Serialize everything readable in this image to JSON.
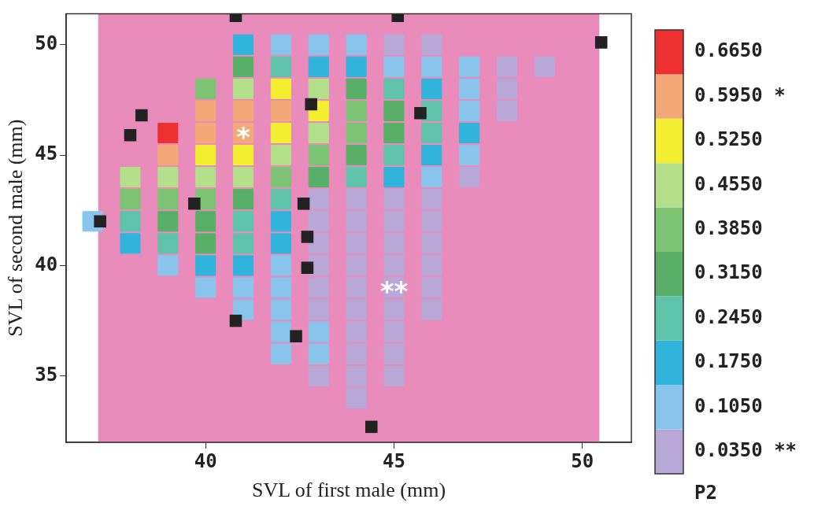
{
  "chart_data": {
    "type": "scatter",
    "xlabel": "SVL of first male (mm)",
    "ylabel": "SVL of second male (mm)",
    "clabel": "P2",
    "xlim": [
      36.3,
      51.3
    ],
    "ylim": [
      32,
      51.4
    ],
    "xticks": [
      40,
      45,
      50
    ],
    "yticks": [
      35,
      40,
      45,
      50
    ],
    "clim": [
      0,
      0.7
    ],
    "cticks": [
      {
        "value": 0.035,
        "label": "0.0350 **"
      },
      {
        "value": 0.105,
        "label": "0.1050"
      },
      {
        "value": 0.175,
        "label": "0.1750"
      },
      {
        "value": 0.245,
        "label": "0.2450"
      },
      {
        "value": 0.315,
        "label": "0.3150"
      },
      {
        "value": 0.385,
        "label": "0.3850"
      },
      {
        "value": 0.455,
        "label": "0.4550"
      },
      {
        "value": 0.525,
        "label": "0.5250"
      },
      {
        "value": 0.595,
        "label": "0.5950 *"
      },
      {
        "value": 0.665,
        "label": "0.6650"
      }
    ],
    "colors": [
      "#b8a8d8",
      "#88c4ec",
      "#30b4dc",
      "#60c4ac",
      "#58b068",
      "#7cc474",
      "#b4e08c",
      "#f4ee30",
      "#f4a878",
      "#ee3030"
    ],
    "series": [
      {
        "type": "scatter",
        "marker": "square",
        "x": [
          41,
          42,
          43,
          44,
          45,
          46
        ],
        "values": [
          50,
          50,
          50,
          50,
          50,
          50
        ],
        "cvalues": [
          0.175,
          0.105,
          0.105,
          0.105,
          0.035,
          0.035
        ],
        "colors": [
          "#30b4dc",
          "#88c4ec",
          "#88c4ec",
          "#88c4ec",
          "#b8a8d8",
          "#b8a8d8"
        ]
      },
      {
        "type": "scatter",
        "marker": "square",
        "x": [
          41,
          42,
          43,
          44,
          45,
          46,
          47,
          48,
          49
        ],
        "values": [
          49,
          49,
          49,
          49,
          49,
          49,
          49,
          49,
          49
        ],
        "cvalues": [
          0.315,
          0.245,
          0.175,
          0.175,
          0.105,
          0.105,
          0.105,
          0.035,
          0.035
        ],
        "colors": [
          "#58b068",
          "#60c4ac",
          "#30b4dc",
          "#30b4dc",
          "#88c4ec",
          "#88c4ec",
          "#88c4ec",
          "#b8a8d8",
          "#b8a8d8"
        ]
      },
      {
        "type": "scatter",
        "marker": "square",
        "x": [
          40,
          41,
          42,
          43,
          44,
          45,
          46,
          47,
          48
        ],
        "values": [
          48,
          48,
          48,
          48,
          48,
          48,
          48,
          48,
          48
        ],
        "cvalues": [
          0.385,
          0.455,
          0.525,
          0.455,
          0.315,
          0.245,
          0.175,
          0.105,
          0.035
        ],
        "colors": [
          "#7cc474",
          "#b4e08c",
          "#f4ee30",
          "#b4e08c",
          "#58b068",
          "#60c4ac",
          "#30b4dc",
          "#88c4ec",
          "#b8a8d8"
        ]
      },
      {
        "type": "scatter",
        "marker": "square",
        "x": [
          40,
          41,
          42,
          43,
          44,
          45,
          46,
          47,
          48
        ],
        "values": [
          47,
          47,
          47,
          47,
          47,
          47,
          47,
          47,
          47
        ],
        "cvalues": [
          0.595,
          0.595,
          0.595,
          0.525,
          0.385,
          0.315,
          0.245,
          0.105,
          0.035
        ],
        "colors": [
          "#f4a878",
          "#f4a878",
          "#f4a878",
          "#f4ee30",
          "#7cc474",
          "#58b068",
          "#60c4ac",
          "#88c4ec",
          "#b8a8d8"
        ]
      },
      {
        "type": "scatter",
        "marker": "square",
        "x": [
          39,
          40,
          41,
          42,
          43,
          44,
          45,
          46,
          47
        ],
        "values": [
          46,
          46,
          46,
          46,
          46,
          46,
          46,
          46,
          46
        ],
        "cvalues": [
          0.665,
          0.595,
          0.595,
          0.525,
          0.455,
          0.385,
          0.315,
          0.245,
          0.175
        ],
        "colors": [
          "#ee3030",
          "#f4a878",
          "#f4a878",
          "#f4ee30",
          "#b4e08c",
          "#7cc474",
          "#58b068",
          "#60c4ac",
          "#30b4dc"
        ]
      },
      {
        "type": "scatter",
        "marker": "square",
        "x": [
          39,
          40,
          41,
          42,
          43,
          44,
          45,
          46,
          47
        ],
        "values": [
          45,
          45,
          45,
          45,
          45,
          45,
          45,
          45,
          45
        ],
        "cvalues": [
          0.595,
          0.525,
          0.525,
          0.455,
          0.385,
          0.315,
          0.245,
          0.175,
          0.105
        ],
        "colors": [
          "#f4a878",
          "#f4ee30",
          "#f4ee30",
          "#b4e08c",
          "#7cc474",
          "#58b068",
          "#60c4ac",
          "#30b4dc",
          "#88c4ec"
        ]
      },
      {
        "type": "scatter",
        "marker": "square",
        "x": [
          38,
          39,
          40,
          41,
          42,
          43,
          44,
          45,
          46,
          47
        ],
        "values": [
          44,
          44,
          44,
          44,
          44,
          44,
          44,
          44,
          44,
          44
        ],
        "cvalues": [
          0.455,
          0.455,
          0.455,
          0.455,
          0.385,
          0.315,
          0.245,
          0.175,
          0.105,
          0.035
        ],
        "colors": [
          "#b4e08c",
          "#b4e08c",
          "#b4e08c",
          "#b4e08c",
          "#7cc474",
          "#58b068",
          "#60c4ac",
          "#30b4dc",
          "#88c4ec",
          "#b8a8d8"
        ]
      },
      {
        "type": "scatter",
        "marker": "square",
        "x": [
          38,
          39,
          40,
          41,
          42,
          43,
          44,
          45,
          46
        ],
        "values": [
          43,
          43,
          43,
          43,
          43,
          43,
          43,
          43,
          43
        ],
        "cvalues": [
          0.385,
          0.385,
          0.385,
          0.315,
          0.245,
          0.035,
          0.035,
          0.035,
          0.035
        ],
        "colors": [
          "#7cc474",
          "#7cc474",
          "#7cc474",
          "#58b068",
          "#60c4ac",
          "#b8a8d8",
          "#b8a8d8",
          "#b8a8d8",
          "#b8a8d8"
        ]
      },
      {
        "type": "scatter",
        "marker": "square",
        "x": [
          37,
          38,
          39,
          40,
          41,
          42,
          43,
          44,
          45,
          46
        ],
        "values": [
          42,
          42,
          42,
          42,
          42,
          42,
          42,
          42,
          42,
          42
        ],
        "cvalues": [
          0.105,
          0.245,
          0.315,
          0.315,
          0.245,
          0.175,
          0.035,
          0.035,
          0.035,
          0.035
        ],
        "colors": [
          "#88c4ec",
          "#60c4ac",
          "#58b068",
          "#58b068",
          "#60c4ac",
          "#30b4dc",
          "#b8a8d8",
          "#b8a8d8",
          "#b8a8d8",
          "#b8a8d8"
        ]
      },
      {
        "type": "scatter",
        "marker": "square",
        "x": [
          38,
          39,
          40,
          41,
          42,
          43,
          44,
          45,
          46
        ],
        "values": [
          41,
          41,
          41,
          41,
          41,
          41,
          41,
          41,
          41
        ],
        "cvalues": [
          0.175,
          0.245,
          0.315,
          0.245,
          0.175,
          0.035,
          0.035,
          0.035,
          0.035
        ],
        "colors": [
          "#30b4dc",
          "#60c4ac",
          "#58b068",
          "#60c4ac",
          "#30b4dc",
          "#b8a8d8",
          "#b8a8d8",
          "#b8a8d8",
          "#b8a8d8"
        ]
      },
      {
        "type": "scatter",
        "marker": "square",
        "x": [
          39,
          40,
          41,
          42,
          43,
          44,
          45,
          46
        ],
        "values": [
          40,
          40,
          40,
          40,
          40,
          40,
          40,
          40
        ],
        "cvalues": [
          0.105,
          0.175,
          0.175,
          0.105,
          0.035,
          0.035,
          0.035,
          0.035
        ],
        "colors": [
          "#88c4ec",
          "#30b4dc",
          "#30b4dc",
          "#88c4ec",
          "#b8a8d8",
          "#b8a8d8",
          "#b8a8d8",
          "#b8a8d8"
        ]
      },
      {
        "type": "scatter",
        "marker": "square",
        "x": [
          40,
          41,
          42,
          43,
          44,
          45,
          46
        ],
        "values": [
          39,
          39,
          39,
          39,
          39,
          39,
          39
        ],
        "cvalues": [
          0.105,
          0.105,
          0.105,
          0.035,
          0.035,
          0.035,
          0.035
        ],
        "colors": [
          "#88c4ec",
          "#88c4ec",
          "#88c4ec",
          "#b8a8d8",
          "#b8a8d8",
          "#b8a8d8",
          "#b8a8d8"
        ]
      },
      {
        "type": "scatter",
        "marker": "square",
        "x": [
          41,
          42,
          43,
          44,
          45,
          46
        ],
        "values": [
          38,
          38,
          38,
          38,
          38,
          38
        ],
        "cvalues": [
          0.105,
          0.105,
          0.035,
          0.035,
          0.035,
          0.035
        ],
        "colors": [
          "#88c4ec",
          "#88c4ec",
          "#b8a8d8",
          "#b8a8d8",
          "#b8a8d8",
          "#b8a8d8"
        ]
      },
      {
        "type": "scatter",
        "marker": "square",
        "x": [
          42,
          43,
          44,
          45
        ],
        "values": [
          37,
          37,
          37,
          37
        ],
        "cvalues": [
          0.105,
          0.105,
          0.035,
          0.035
        ],
        "colors": [
          "#88c4ec",
          "#88c4ec",
          "#b8a8d8",
          "#b8a8d8"
        ]
      },
      {
        "type": "scatter",
        "marker": "square",
        "x": [
          42,
          43,
          44,
          45
        ],
        "values": [
          36,
          36,
          36,
          36
        ],
        "cvalues": [
          0.105,
          0.105,
          0.035,
          0.035
        ],
        "colors": [
          "#88c4ec",
          "#88c4ec",
          "#b8a8d8",
          "#b8a8d8"
        ]
      },
      {
        "type": "scatter",
        "marker": "square",
        "x": [
          43,
          44,
          45
        ],
        "values": [
          35,
          35,
          35
        ],
        "cvalues": [
          0.035,
          0.035,
          0.035
        ],
        "colors": [
          "#b8a8d8",
          "#b8a8d8",
          "#b8a8d8"
        ]
      },
      {
        "type": "scatter",
        "marker": "square",
        "x": [
          44
        ],
        "values": [
          34
        ],
        "cvalues": [
          0.035
        ],
        "colors": [
          "#b8a8d8"
        ]
      },
      {
        "type": "scatter",
        "color": "#222222",
        "marker": "square",
        "x": [
          40.8,
          45.1,
          50.5,
          42.8,
          45.7,
          38.0,
          38.3,
          39.7,
          37.2,
          42.6,
          42.7,
          42.7,
          40.8,
          42.4,
          44.4
        ],
        "values": [
          51.3,
          51.3,
          50.1,
          47.3,
          46.9,
          45.9,
          46.8,
          42.8,
          42.0,
          42.8,
          41.3,
          39.9,
          37.5,
          36.8,
          32.7
        ]
      }
    ],
    "annotations": [
      {
        "text": "*",
        "x": 41,
        "y": 46
      },
      {
        "text": "**",
        "x": 45,
        "y": 39
      }
    ],
    "bands": [
      {
        "axis": "x",
        "from": 37.15,
        "to": 50.45,
        "color": "#e98cbc"
      }
    ],
    "grid": false,
    "legend": false
  }
}
